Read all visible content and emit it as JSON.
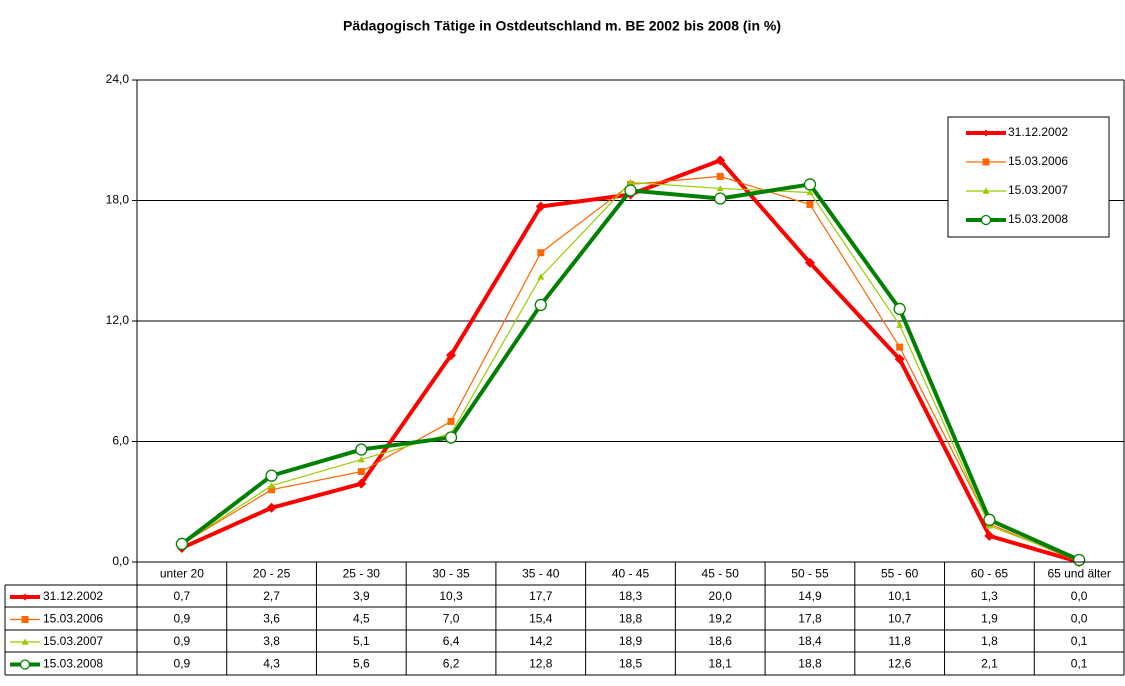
{
  "chart_data": {
    "type": "line",
    "title": "Pädagogisch Tätige in Ostdeutschland m. BE 2002 bis 2008 (in %)",
    "categories": [
      "unter 20",
      "20 - 25",
      "25 - 30",
      "30 - 35",
      "35 - 40",
      "40 - 45",
      "45 - 50",
      "50 - 55",
      "55 - 60",
      "60 - 65",
      "65 und älter"
    ],
    "series": [
      {
        "name": "31.12.2002",
        "color": "#ff0000",
        "marker": "diamond",
        "width": 4,
        "values": [
          0.7,
          2.7,
          3.9,
          10.3,
          17.7,
          18.3,
          20.0,
          14.9,
          10.1,
          1.3,
          0.0
        ],
        "value_labels": [
          "0,7",
          "2,7",
          "3,9",
          "10,3",
          "17,7",
          "18,3",
          "20,0",
          "14,9",
          "10,1",
          "1,3",
          "0,0"
        ]
      },
      {
        "name": "15.03.2006",
        "color": "#ff6600",
        "marker": "square",
        "width": 1.2,
        "values": [
          0.9,
          3.6,
          4.5,
          7.0,
          15.4,
          18.8,
          19.2,
          17.8,
          10.7,
          1.9,
          0.0
        ],
        "value_labels": [
          "0,9",
          "3,6",
          "4,5",
          "7,0",
          "15,4",
          "18,8",
          "19,2",
          "17,8",
          "10,7",
          "1,9",
          "0,0"
        ]
      },
      {
        "name": "15.03.2007",
        "color": "#99cc00",
        "marker": "triangle",
        "width": 1.2,
        "values": [
          0.9,
          3.8,
          5.1,
          6.4,
          14.2,
          18.9,
          18.6,
          18.4,
          11.8,
          1.8,
          0.1
        ],
        "value_labels": [
          "0,9",
          "3,8",
          "5,1",
          "6,4",
          "14,2",
          "18,9",
          "18,6",
          "18,4",
          "11,8",
          "1,8",
          "0,1"
        ]
      },
      {
        "name": "15.03.2008",
        "color": "#008000",
        "marker": "circle",
        "width": 4,
        "values": [
          0.9,
          4.3,
          5.6,
          6.2,
          12.8,
          18.5,
          18.1,
          18.8,
          12.6,
          2.1,
          0.1
        ],
        "value_labels": [
          "0,9",
          "4,3",
          "5,6",
          "6,2",
          "12,8",
          "18,5",
          "18,1",
          "18,8",
          "12,6",
          "2,1",
          "0,1"
        ]
      }
    ],
    "ylim": [
      0,
      24
    ],
    "yticks": [
      {
        "value": 0,
        "label": "0,0"
      },
      {
        "value": 6,
        "label": "6,0"
      },
      {
        "value": 12,
        "label": "12,0"
      },
      {
        "value": 18,
        "label": "18,0"
      },
      {
        "value": 24,
        "label": "24,0"
      }
    ],
    "grid": true,
    "legend": "upper right"
  }
}
